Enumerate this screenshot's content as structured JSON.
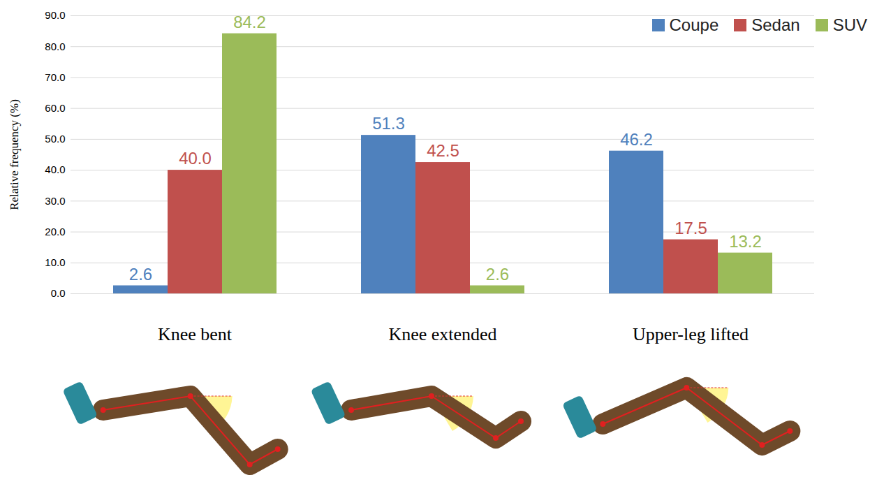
{
  "chart_data": {
    "type": "bar",
    "y_label": "Relative frequency (%)",
    "categories": [
      "Knee bent",
      "Knee extended",
      "Upper-leg lifted"
    ],
    "series": [
      {
        "name": "Coupe",
        "color": "#4f81bd",
        "values": [
          2.6,
          51.3,
          46.2
        ],
        "value_labels": [
          "2.6",
          "51.3",
          "46.2"
        ]
      },
      {
        "name": "Sedan",
        "color": "#c0504d",
        "values": [
          40.0,
          42.5,
          17.5
        ],
        "value_labels": [
          "40.0",
          "42.5",
          "17.5"
        ]
      },
      {
        "name": "SUV",
        "color": "#9bbb59",
        "values": [
          84.2,
          2.6,
          13.2
        ],
        "value_labels": [
          "84.2",
          "2.6",
          "13.2"
        ]
      }
    ],
    "ylim": [
      0,
      90
    ],
    "yticks": [
      {
        "value": 0,
        "label": "0.0"
      },
      {
        "value": 10,
        "label": "10.0"
      },
      {
        "value": 20,
        "label": "20.0"
      },
      {
        "value": 30,
        "label": "30.0"
      },
      {
        "value": 40,
        "label": "40.0"
      },
      {
        "value": 50,
        "label": "50.0"
      },
      {
        "value": 60,
        "label": "60.0"
      },
      {
        "value": 70,
        "label": "70.0"
      },
      {
        "value": 80,
        "label": "80.0"
      },
      {
        "value": 90,
        "label": "90.0"
      }
    ],
    "grid": true,
    "legend": "top-right",
    "data_labels": true
  }
}
